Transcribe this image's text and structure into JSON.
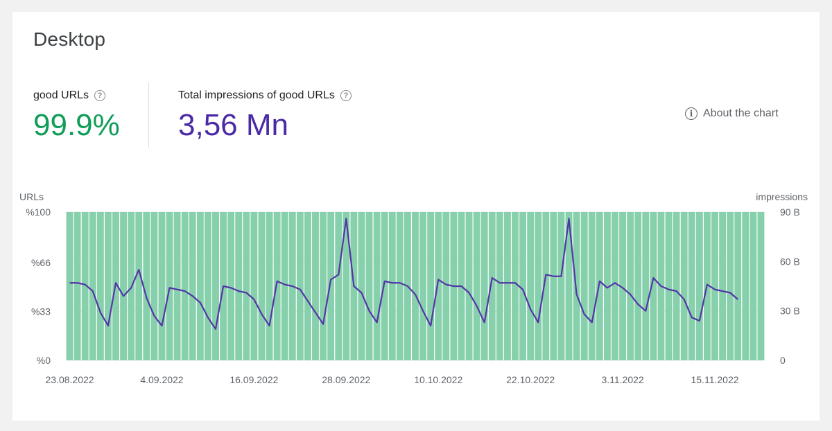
{
  "card": {
    "title": "Desktop",
    "metrics": [
      {
        "label": "good URLs",
        "value": "99.9%",
        "color": "#0f9d58",
        "help_icon": "help-circle-icon"
      },
      {
        "label": "Total impressions of good URLs",
        "value": "3,56 Mn",
        "color": "#4a2aa5",
        "help_icon": "help-circle-icon"
      }
    ],
    "about_link": {
      "label": "About the chart",
      "icon": "info-icon"
    }
  },
  "chart_data": {
    "type": "bar",
    "left_axis": {
      "label": "URLs",
      "ticks": [
        "%0",
        "%33",
        "%66",
        "%100"
      ],
      "tick_values": [
        0,
        33,
        66,
        100
      ],
      "ylim": [
        0,
        100
      ]
    },
    "right_axis": {
      "label": "impressions",
      "ticks": [
        "0",
        "30 B",
        "60 B",
        "90 B"
      ],
      "tick_values": [
        0,
        30,
        60,
        90
      ],
      "ylim": [
        0,
        90
      ]
    },
    "x_tick_labels": [
      "23.08.2022",
      "4.09.2022",
      "16.09.2022",
      "28.09.2022",
      "10.10.2022",
      "22.10.2022",
      "3.11.2022",
      "15.11.2022"
    ],
    "x_tick_day_index": [
      0,
      12,
      24,
      36,
      48,
      60,
      72,
      84
    ],
    "bar_color": "#87d0ac",
    "line_color": "#5335a8",
    "series": [
      {
        "name": "good URLs",
        "axis": "left",
        "kind": "bar",
        "values": [
          100,
          100,
          100,
          100,
          100,
          100,
          100,
          100,
          100,
          100,
          100,
          100,
          100,
          100,
          100,
          100,
          100,
          100,
          100,
          100,
          100,
          100,
          100,
          100,
          100,
          100,
          100,
          100,
          100,
          100,
          100,
          100,
          100,
          100,
          100,
          100,
          100,
          100,
          100,
          100,
          100,
          100,
          100,
          100,
          100,
          100,
          100,
          100,
          100,
          100,
          100,
          100,
          100,
          100,
          100,
          100,
          100,
          100,
          100,
          100,
          100,
          100,
          100,
          100,
          100,
          100,
          100,
          100,
          100,
          100,
          100,
          100,
          100,
          100,
          100,
          100,
          100,
          100,
          100,
          100,
          100,
          100,
          100,
          100,
          100,
          100,
          100,
          100,
          100,
          100,
          100
        ]
      },
      {
        "name": "impressions",
        "axis": "right",
        "kind": "line",
        "values": [
          47,
          47,
          46,
          42,
          29,
          21,
          47,
          39,
          44,
          55,
          38,
          27,
          21,
          44,
          43,
          42,
          39,
          35,
          26,
          19,
          45,
          44,
          42,
          41,
          37,
          28,
          21,
          48,
          46,
          45,
          43,
          36,
          29,
          22,
          49,
          52,
          86,
          45,
          41,
          30,
          23,
          48,
          47,
          47,
          45,
          40,
          30,
          21,
          49,
          46,
          45,
          45,
          41,
          33,
          23,
          50,
          47,
          47,
          47,
          43,
          31,
          23,
          52,
          51,
          51,
          86,
          40,
          28,
          23,
          48,
          44,
          47,
          44,
          40,
          34,
          30,
          50,
          45,
          43,
          42,
          37,
          26,
          24,
          46,
          43,
          42,
          41,
          37
        ]
      }
    ],
    "grid": true
  }
}
